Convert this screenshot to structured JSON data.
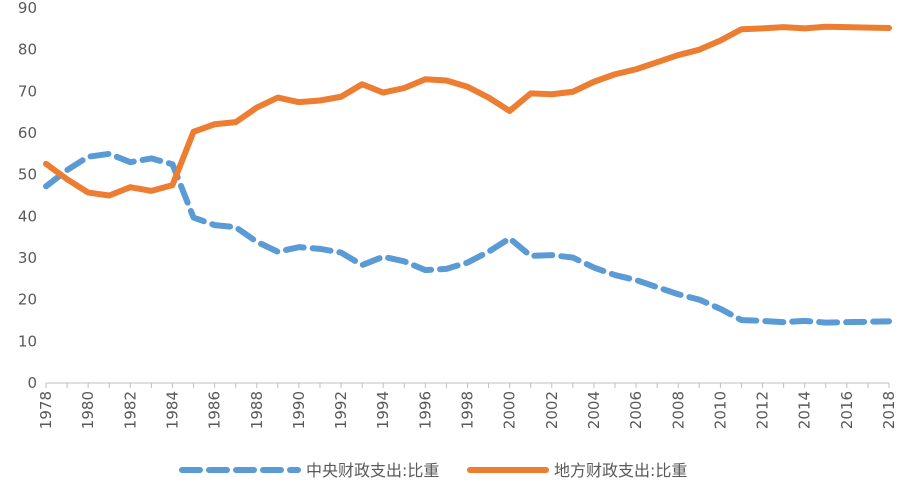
{
  "chart_data": {
    "type": "line",
    "title": "",
    "xlabel": "",
    "ylabel": "",
    "ylim": [
      0,
      90
    ],
    "yticks": [
      0,
      10,
      20,
      30,
      40,
      50,
      60,
      70,
      80,
      90
    ],
    "x": [
      1978,
      1979,
      1980,
      1981,
      1982,
      1983,
      1984,
      1985,
      1986,
      1987,
      1988,
      1989,
      1990,
      1991,
      1992,
      1993,
      1994,
      1995,
      1996,
      1997,
      1998,
      1999,
      2000,
      2001,
      2002,
      2003,
      2004,
      2005,
      2006,
      2007,
      2008,
      2009,
      2010,
      2011,
      2012,
      2013,
      2014,
      2015,
      2016,
      2017,
      2018
    ],
    "xtick_labels": [
      "1978",
      "1980",
      "1982",
      "1984",
      "1986",
      "1988",
      "1990",
      "1992",
      "1994",
      "1996",
      "1998",
      "2000",
      "2002",
      "2004",
      "2006",
      "2008",
      "2010",
      "2012",
      "2014",
      "2016",
      "2018"
    ],
    "grid": false,
    "legend": "bottom",
    "series": [
      {
        "name": "中央财政支出:比重",
        "color": "#5B9BD5",
        "style": "dashed",
        "values": [
          47.2,
          51.1,
          54.3,
          55.0,
          53.0,
          53.9,
          52.5,
          39.7,
          37.9,
          37.4,
          33.9,
          31.5,
          32.6,
          32.2,
          31.3,
          28.3,
          30.3,
          29.2,
          27.1,
          27.4,
          28.9,
          31.5,
          34.7,
          30.5,
          30.7,
          30.1,
          27.7,
          25.9,
          24.7,
          23.0,
          21.3,
          20.0,
          17.8,
          15.1,
          14.9,
          14.6,
          14.9,
          14.5,
          14.6,
          14.7,
          14.8
        ]
      },
      {
        "name": "地方财政支出:比重",
        "color": "#ED7D31",
        "style": "solid",
        "values": [
          52.6,
          48.9,
          45.7,
          45.0,
          47.0,
          46.1,
          47.5,
          60.3,
          62.1,
          62.6,
          66.1,
          68.5,
          67.4,
          67.8,
          68.7,
          71.7,
          69.7,
          70.8,
          72.9,
          72.6,
          71.1,
          68.5,
          65.3,
          69.5,
          69.3,
          69.9,
          72.3,
          74.1,
          75.3,
          77.0,
          78.7,
          80.0,
          82.2,
          84.9,
          85.1,
          85.4,
          85.1,
          85.5,
          85.4,
          85.3,
          85.2
        ]
      }
    ]
  }
}
